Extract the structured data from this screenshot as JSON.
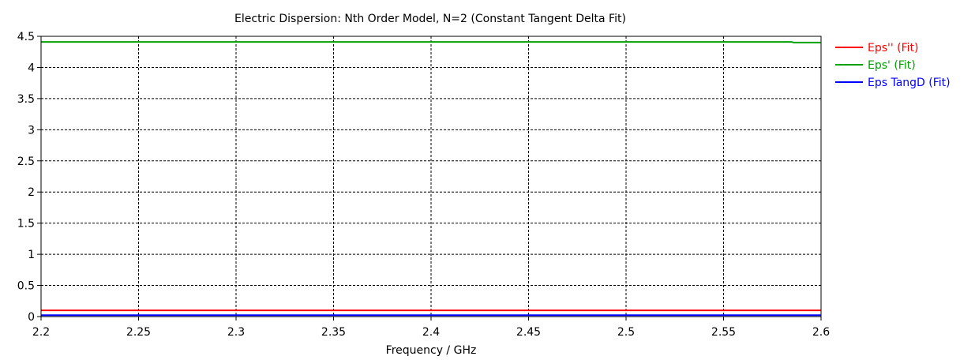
{
  "chart_data": {
    "type": "line",
    "title": "Electric Dispersion: Nth Order Model, N=2 (Constant Tangent Delta Fit)",
    "xlabel": "Frequency / GHz",
    "ylabel": "",
    "xlim": [
      2.2,
      2.6
    ],
    "ylim": [
      0,
      4.5
    ],
    "x_ticks": [
      "2.2",
      "2.25",
      "2.3",
      "2.35",
      "2.4",
      "2.45",
      "2.5",
      "2.55",
      "2.6"
    ],
    "y_ticks": [
      "0",
      "0.5",
      "1",
      "1.5",
      "2",
      "2.5",
      "3",
      "3.5",
      "4",
      "4.5"
    ],
    "grid": true,
    "legend_position": "right",
    "series": [
      {
        "name": "Eps'' (Fit)",
        "color": "#ff0000",
        "x": [
          2.2,
          2.6
        ],
        "values": [
          0.1,
          0.1
        ]
      },
      {
        "name": "Eps' (Fit)",
        "color": "#00a000",
        "x": [
          2.2,
          2.585,
          2.586,
          2.6
        ],
        "values": [
          4.41,
          4.41,
          4.4,
          4.4
        ]
      },
      {
        "name": "Eps TangD (Fit)",
        "color": "#0000ff",
        "x": [
          2.2,
          2.6
        ],
        "values": [
          0.023,
          0.023
        ]
      }
    ]
  }
}
